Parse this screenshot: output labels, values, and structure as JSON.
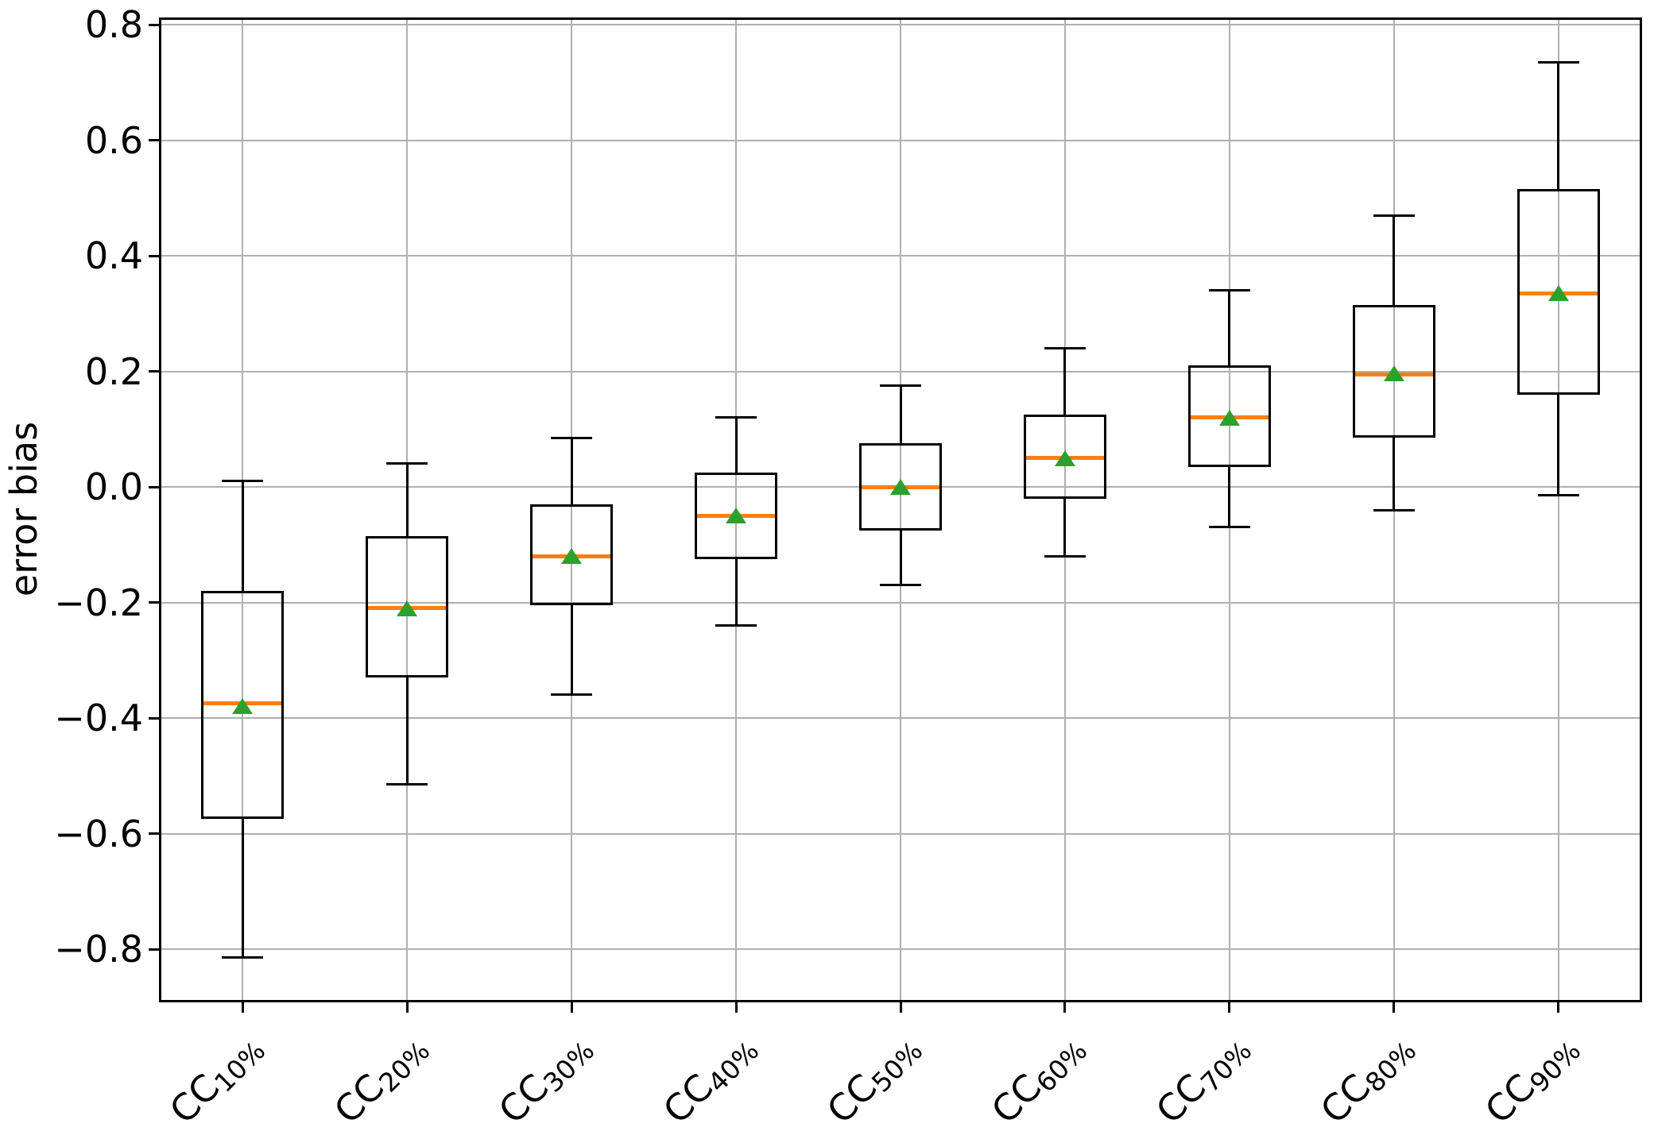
{
  "figure": {
    "background": "#ffffff",
    "grid": true
  },
  "chart_data": {
    "type": "boxplot",
    "title": "",
    "xlabel": "",
    "ylabel": "error bias",
    "legend": null,
    "grid": true,
    "ylim": [
      -0.889,
      0.81
    ],
    "yticks": [
      0.8,
      0.6,
      0.4,
      0.2,
      0.0,
      -0.2,
      -0.4,
      -0.6,
      -0.8
    ],
    "categories": [
      {
        "base": "CC",
        "sub": "10%"
      },
      {
        "base": "CC",
        "sub": "20%"
      },
      {
        "base": "CC",
        "sub": "30%"
      },
      {
        "base": "CC",
        "sub": "40%"
      },
      {
        "base": "CC",
        "sub": "50%"
      },
      {
        "base": "CC",
        "sub": "60%"
      },
      {
        "base": "CC",
        "sub": "70%"
      },
      {
        "base": "CC",
        "sub": "80%"
      },
      {
        "base": "CC",
        "sub": "90%"
      }
    ],
    "series": [
      {
        "label": "CC10%",
        "whislo": -0.815,
        "q1": -0.575,
        "med": -0.375,
        "q3": -0.18,
        "whishi": 0.01,
        "mean": -0.38
      },
      {
        "label": "CC20%",
        "whislo": -0.515,
        "q1": -0.33,
        "med": -0.21,
        "q3": -0.085,
        "whishi": 0.04,
        "mean": -0.21
      },
      {
        "label": "CC30%",
        "whislo": -0.36,
        "q1": -0.205,
        "med": -0.12,
        "q3": -0.03,
        "whishi": 0.085,
        "mean": -0.12
      },
      {
        "label": "CC40%",
        "whislo": -0.24,
        "q1": -0.125,
        "med": -0.05,
        "q3": 0.025,
        "whishi": 0.12,
        "mean": -0.05
      },
      {
        "label": "CC50%",
        "whislo": -0.17,
        "q1": -0.075,
        "med": 0.0,
        "q3": 0.075,
        "whishi": 0.175,
        "mean": 0.0
      },
      {
        "label": "CC60%",
        "whislo": -0.12,
        "q1": -0.02,
        "med": 0.05,
        "q3": 0.125,
        "whishi": 0.24,
        "mean": 0.05
      },
      {
        "label": "CC70%",
        "whislo": -0.07,
        "q1": 0.035,
        "med": 0.12,
        "q3": 0.21,
        "whishi": 0.34,
        "mean": 0.12
      },
      {
        "label": "CC80%",
        "whislo": -0.04,
        "q1": 0.085,
        "med": 0.195,
        "q3": 0.315,
        "whishi": 0.47,
        "mean": 0.197
      },
      {
        "label": "CC90%",
        "whislo": -0.015,
        "q1": 0.16,
        "med": 0.335,
        "q3": 0.515,
        "whishi": 0.735,
        "mean": 0.335
      }
    ],
    "colors": {
      "box": "#000000",
      "median": "#ff7f0e",
      "mean_marker": "#2ca02c",
      "grid": "#b0b0b0",
      "spine": "#000000"
    }
  }
}
